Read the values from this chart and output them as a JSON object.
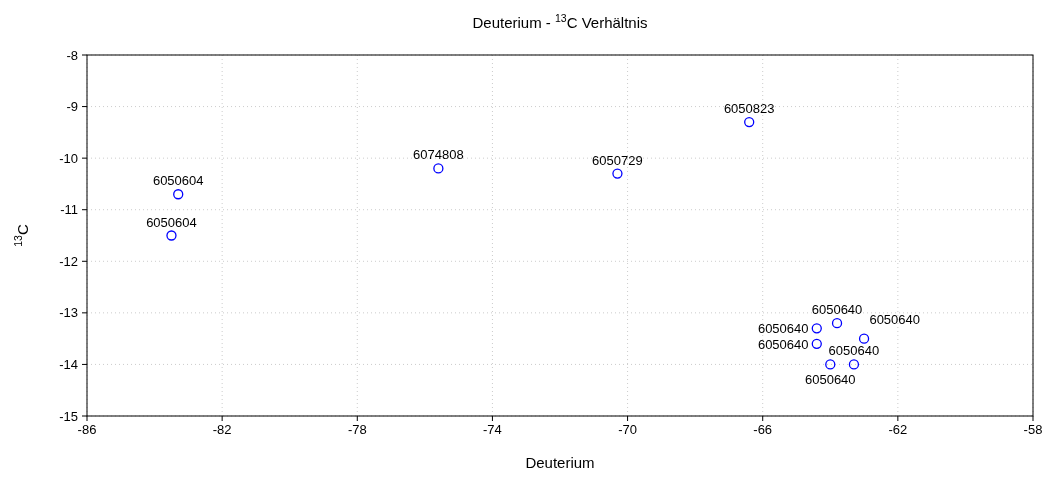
{
  "chart_data": {
    "type": "scatter",
    "title": "Deuterium - $^{13}$C Verhältnis",
    "xlabel": "Deuterium",
    "ylabel": "$^{13}$C",
    "xlim": [
      -86,
      -58
    ],
    "xticks": [
      -86,
      -82,
      -78,
      -74,
      -70,
      -66,
      -62,
      -58
    ],
    "ylim": [
      -15,
      -8
    ],
    "yticks": [
      -15,
      -14,
      -13,
      -12,
      -11,
      -10,
      -9,
      -8
    ],
    "grid": true,
    "marker": "circle",
    "series": [
      {
        "color": "#0000ff",
        "x": [
          -83.3,
          -83.5,
          -75.6,
          -70.3,
          -66.4,
          -64.4,
          -64.4,
          -64.0,
          -63.3,
          -63.8,
          -63.0
        ],
        "values": [
          -10.7,
          -11.5,
          -10.2,
          -10.3,
          -9.3,
          -13.3,
          -13.6,
          -14.0,
          -14.0,
          -13.2,
          -13.5
        ]
      }
    ],
    "annotations": [
      {
        "text": "6050604",
        "x": -83.3,
        "y": -10.7
      },
      {
        "text": "6050604",
        "x": -83.5,
        "y": -11.5
      },
      {
        "text": "6074808",
        "x": -75.6,
        "y": -10.2
      },
      {
        "text": "6050729",
        "x": -70.3,
        "y": -10.3
      },
      {
        "text": "6050823",
        "x": -66.4,
        "y": -9.3
      },
      {
        "text": "6050640",
        "x": -64.4,
        "y": -13.3
      },
      {
        "text": "6050640",
        "x": -64.4,
        "y": -13.6
      },
      {
        "text": "6050640",
        "x": -64.0,
        "y": -14.0
      },
      {
        "text": "6050640",
        "x": -63.3,
        "y": -14.0
      },
      {
        "text": "6050640",
        "x": -63.8,
        "y": -13.2
      },
      {
        "text": "6050640",
        "x": -63.0,
        "y": -13.5
      }
    ]
  }
}
